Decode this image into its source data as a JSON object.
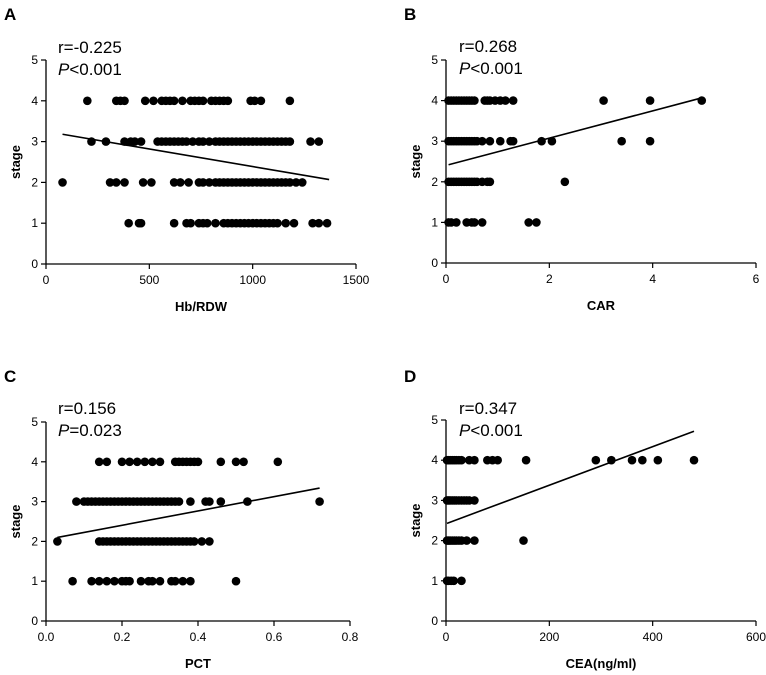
{
  "chart_data": [
    {
      "type": "scatter",
      "panel": "A",
      "stat_r": "r=-0.225",
      "stat_p_symbol": "P",
      "stat_p_value": "<0.001",
      "xlabel": "Hb/RDW",
      "ylabel": "stage",
      "xlim": [
        0,
        1500
      ],
      "ylim": [
        0,
        5
      ],
      "xticks": [
        0,
        500,
        1000,
        1500
      ],
      "xtick_labels": [
        "0",
        "500",
        "1000",
        "1500"
      ],
      "yticks": [
        0,
        1,
        2,
        3,
        4,
        5
      ],
      "ytick_labels": [
        "0",
        "1",
        "2",
        "3",
        "4",
        "5"
      ],
      "fit_line": [
        [
          80,
          3.18
        ],
        [
          1370,
          2.07
        ]
      ],
      "points": [
        [
          200,
          4
        ],
        [
          340,
          4
        ],
        [
          360,
          4
        ],
        [
          380,
          4
        ],
        [
          480,
          4
        ],
        [
          520,
          4
        ],
        [
          560,
          4
        ],
        [
          580,
          4
        ],
        [
          600,
          4
        ],
        [
          620,
          4
        ],
        [
          660,
          4
        ],
        [
          700,
          4
        ],
        [
          720,
          4
        ],
        [
          740,
          4
        ],
        [
          760,
          4
        ],
        [
          800,
          4
        ],
        [
          820,
          4
        ],
        [
          840,
          4
        ],
        [
          860,
          4
        ],
        [
          880,
          4
        ],
        [
          990,
          4
        ],
        [
          1010,
          4
        ],
        [
          1040,
          4
        ],
        [
          1180,
          4
        ],
        [
          220,
          3
        ],
        [
          290,
          3
        ],
        [
          380,
          3
        ],
        [
          410,
          3
        ],
        [
          430,
          3
        ],
        [
          460,
          3
        ],
        [
          540,
          3
        ],
        [
          560,
          3
        ],
        [
          580,
          3
        ],
        [
          600,
          3
        ],
        [
          620,
          3
        ],
        [
          640,
          3
        ],
        [
          660,
          3
        ],
        [
          680,
          3
        ],
        [
          710,
          3
        ],
        [
          740,
          3
        ],
        [
          760,
          3
        ],
        [
          790,
          3
        ],
        [
          820,
          3
        ],
        [
          840,
          3
        ],
        [
          860,
          3
        ],
        [
          880,
          3
        ],
        [
          900,
          3
        ],
        [
          920,
          3
        ],
        [
          940,
          3
        ],
        [
          960,
          3
        ],
        [
          980,
          3
        ],
        [
          1000,
          3
        ],
        [
          1020,
          3
        ],
        [
          1040,
          3
        ],
        [
          1060,
          3
        ],
        [
          1080,
          3
        ],
        [
          1100,
          3
        ],
        [
          1120,
          3
        ],
        [
          1140,
          3
        ],
        [
          1160,
          3
        ],
        [
          1180,
          3
        ],
        [
          1280,
          3
        ],
        [
          1320,
          3
        ],
        [
          80,
          2
        ],
        [
          310,
          2
        ],
        [
          340,
          2
        ],
        [
          380,
          2
        ],
        [
          470,
          2
        ],
        [
          510,
          2
        ],
        [
          620,
          2
        ],
        [
          650,
          2
        ],
        [
          690,
          2
        ],
        [
          740,
          2
        ],
        [
          760,
          2
        ],
        [
          790,
          2
        ],
        [
          820,
          2
        ],
        [
          840,
          2
        ],
        [
          860,
          2
        ],
        [
          880,
          2
        ],
        [
          900,
          2
        ],
        [
          920,
          2
        ],
        [
          940,
          2
        ],
        [
          960,
          2
        ],
        [
          980,
          2
        ],
        [
          1000,
          2
        ],
        [
          1020,
          2
        ],
        [
          1040,
          2
        ],
        [
          1060,
          2
        ],
        [
          1080,
          2
        ],
        [
          1100,
          2
        ],
        [
          1120,
          2
        ],
        [
          1140,
          2
        ],
        [
          1160,
          2
        ],
        [
          1180,
          2
        ],
        [
          1210,
          2
        ],
        [
          1240,
          2
        ],
        [
          400,
          1
        ],
        [
          450,
          1
        ],
        [
          460,
          1
        ],
        [
          620,
          1
        ],
        [
          680,
          1
        ],
        [
          700,
          1
        ],
        [
          740,
          1
        ],
        [
          760,
          1
        ],
        [
          780,
          1
        ],
        [
          820,
          1
        ],
        [
          860,
          1
        ],
        [
          880,
          1
        ],
        [
          900,
          1
        ],
        [
          920,
          1
        ],
        [
          940,
          1
        ],
        [
          960,
          1
        ],
        [
          980,
          1
        ],
        [
          1000,
          1
        ],
        [
          1020,
          1
        ],
        [
          1040,
          1
        ],
        [
          1060,
          1
        ],
        [
          1080,
          1
        ],
        [
          1100,
          1
        ],
        [
          1120,
          1
        ],
        [
          1160,
          1
        ],
        [
          1200,
          1
        ],
        [
          1290,
          1
        ],
        [
          1320,
          1
        ],
        [
          1360,
          1
        ]
      ]
    },
    {
      "type": "scatter",
      "panel": "B",
      "stat_r": "r=0.268",
      "stat_p_symbol": "P",
      "stat_p_value": "<0.001",
      "xlabel": "CAR",
      "ylabel": "stage",
      "xlim": [
        0,
        6
      ],
      "ylim": [
        0,
        5
      ],
      "xticks": [
        0,
        2,
        4,
        6
      ],
      "xtick_labels": [
        "0",
        "2",
        "4",
        "6"
      ],
      "yticks": [
        0,
        1,
        2,
        3,
        4,
        5
      ],
      "ytick_labels": [
        "0",
        "1",
        "2",
        "3",
        "4",
        "5"
      ],
      "fit_line": [
        [
          0.05,
          2.42
        ],
        [
          4.9,
          4.05
        ]
      ],
      "points": [
        [
          0.05,
          4
        ],
        [
          0.1,
          4
        ],
        [
          0.15,
          4
        ],
        [
          0.2,
          4
        ],
        [
          0.25,
          4
        ],
        [
          0.3,
          4
        ],
        [
          0.35,
          4
        ],
        [
          0.4,
          4
        ],
        [
          0.45,
          4
        ],
        [
          0.5,
          4
        ],
        [
          0.55,
          4
        ],
        [
          0.75,
          4
        ],
        [
          0.8,
          4
        ],
        [
          0.85,
          4
        ],
        [
          0.95,
          4
        ],
        [
          1.05,
          4
        ],
        [
          1.15,
          4
        ],
        [
          1.3,
          4
        ],
        [
          3.05,
          4
        ],
        [
          3.95,
          4
        ],
        [
          4.95,
          4
        ],
        [
          0.05,
          3
        ],
        [
          0.1,
          3
        ],
        [
          0.15,
          3
        ],
        [
          0.2,
          3
        ],
        [
          0.25,
          3
        ],
        [
          0.3,
          3
        ],
        [
          0.35,
          3
        ],
        [
          0.4,
          3
        ],
        [
          0.45,
          3
        ],
        [
          0.5,
          3
        ],
        [
          0.55,
          3
        ],
        [
          0.6,
          3
        ],
        [
          0.7,
          3
        ],
        [
          0.85,
          3
        ],
        [
          1.05,
          3
        ],
        [
          1.25,
          3
        ],
        [
          1.3,
          3
        ],
        [
          1.85,
          3
        ],
        [
          2.05,
          3
        ],
        [
          3.4,
          3
        ],
        [
          3.95,
          3
        ],
        [
          0.05,
          2
        ],
        [
          0.1,
          2
        ],
        [
          0.15,
          2
        ],
        [
          0.2,
          2
        ],
        [
          0.25,
          2
        ],
        [
          0.3,
          2
        ],
        [
          0.35,
          2
        ],
        [
          0.4,
          2
        ],
        [
          0.45,
          2
        ],
        [
          0.5,
          2
        ],
        [
          0.55,
          2
        ],
        [
          0.6,
          2
        ],
        [
          0.7,
          2
        ],
        [
          0.8,
          2
        ],
        [
          0.85,
          2
        ],
        [
          2.3,
          2
        ],
        [
          0.05,
          1
        ],
        [
          0.1,
          1
        ],
        [
          0.2,
          1
        ],
        [
          0.4,
          1
        ],
        [
          0.5,
          1
        ],
        [
          0.55,
          1
        ],
        [
          0.7,
          1
        ],
        [
          1.6,
          1
        ],
        [
          1.75,
          1
        ]
      ]
    },
    {
      "type": "scatter",
      "panel": "C",
      "stat_r": "r=0.156",
      "stat_p_symbol": "P",
      "stat_p_value": "=0.023",
      "xlabel": "PCT",
      "ylabel": "stage",
      "xlim": [
        0.0,
        0.8
      ],
      "ylim": [
        0,
        5
      ],
      "xticks": [
        0.0,
        0.2,
        0.4,
        0.6,
        0.8
      ],
      "xtick_labels": [
        "0.0",
        "0.2",
        "0.4",
        "0.6",
        "0.8"
      ],
      "yticks": [
        0,
        1,
        2,
        3,
        4,
        5
      ],
      "ytick_labels": [
        "0",
        "1",
        "2",
        "3",
        "4",
        "5"
      ],
      "fit_line": [
        [
          0.03,
          2.1
        ],
        [
          0.72,
          3.34
        ]
      ],
      "points": [
        [
          0.14,
          4
        ],
        [
          0.16,
          4
        ],
        [
          0.2,
          4
        ],
        [
          0.22,
          4
        ],
        [
          0.24,
          4
        ],
        [
          0.26,
          4
        ],
        [
          0.28,
          4
        ],
        [
          0.3,
          4
        ],
        [
          0.34,
          4
        ],
        [
          0.35,
          4
        ],
        [
          0.36,
          4
        ],
        [
          0.37,
          4
        ],
        [
          0.38,
          4
        ],
        [
          0.39,
          4
        ],
        [
          0.4,
          4
        ],
        [
          0.46,
          4
        ],
        [
          0.5,
          4
        ],
        [
          0.52,
          4
        ],
        [
          0.61,
          4
        ],
        [
          0.08,
          3
        ],
        [
          0.1,
          3
        ],
        [
          0.11,
          3
        ],
        [
          0.12,
          3
        ],
        [
          0.13,
          3
        ],
        [
          0.14,
          3
        ],
        [
          0.15,
          3
        ],
        [
          0.16,
          3
        ],
        [
          0.17,
          3
        ],
        [
          0.18,
          3
        ],
        [
          0.19,
          3
        ],
        [
          0.2,
          3
        ],
        [
          0.21,
          3
        ],
        [
          0.22,
          3
        ],
        [
          0.23,
          3
        ],
        [
          0.24,
          3
        ],
        [
          0.25,
          3
        ],
        [
          0.26,
          3
        ],
        [
          0.27,
          3
        ],
        [
          0.28,
          3
        ],
        [
          0.29,
          3
        ],
        [
          0.3,
          3
        ],
        [
          0.31,
          3
        ],
        [
          0.32,
          3
        ],
        [
          0.33,
          3
        ],
        [
          0.34,
          3
        ],
        [
          0.35,
          3
        ],
        [
          0.38,
          3
        ],
        [
          0.42,
          3
        ],
        [
          0.43,
          3
        ],
        [
          0.46,
          3
        ],
        [
          0.53,
          3
        ],
        [
          0.72,
          3
        ],
        [
          0.03,
          2
        ],
        [
          0.14,
          2
        ],
        [
          0.15,
          2
        ],
        [
          0.16,
          2
        ],
        [
          0.17,
          2
        ],
        [
          0.18,
          2
        ],
        [
          0.19,
          2
        ],
        [
          0.2,
          2
        ],
        [
          0.21,
          2
        ],
        [
          0.22,
          2
        ],
        [
          0.23,
          2
        ],
        [
          0.24,
          2
        ],
        [
          0.25,
          2
        ],
        [
          0.26,
          2
        ],
        [
          0.27,
          2
        ],
        [
          0.28,
          2
        ],
        [
          0.29,
          2
        ],
        [
          0.3,
          2
        ],
        [
          0.31,
          2
        ],
        [
          0.32,
          2
        ],
        [
          0.33,
          2
        ],
        [
          0.34,
          2
        ],
        [
          0.35,
          2
        ],
        [
          0.36,
          2
        ],
        [
          0.37,
          2
        ],
        [
          0.38,
          2
        ],
        [
          0.39,
          2
        ],
        [
          0.41,
          2
        ],
        [
          0.43,
          2
        ],
        [
          0.07,
          1
        ],
        [
          0.12,
          1
        ],
        [
          0.14,
          1
        ],
        [
          0.16,
          1
        ],
        [
          0.18,
          1
        ],
        [
          0.2,
          1
        ],
        [
          0.21,
          1
        ],
        [
          0.22,
          1
        ],
        [
          0.25,
          1
        ],
        [
          0.27,
          1
        ],
        [
          0.28,
          1
        ],
        [
          0.3,
          1
        ],
        [
          0.33,
          1
        ],
        [
          0.34,
          1
        ],
        [
          0.36,
          1
        ],
        [
          0.38,
          1
        ],
        [
          0.5,
          1
        ]
      ]
    },
    {
      "type": "scatter",
      "panel": "D",
      "stat_r": "r=0.347",
      "stat_p_symbol": "P",
      "stat_p_value": "<0.001",
      "xlabel": "CEA(ng/ml)",
      "ylabel": "stage",
      "xlim": [
        0,
        600
      ],
      "ylim": [
        0,
        5
      ],
      "xticks": [
        0,
        200,
        400,
        600
      ],
      "xtick_labels": [
        "0",
        "200",
        "400",
        "600"
      ],
      "yticks": [
        0,
        1,
        2,
        3,
        4,
        5
      ],
      "ytick_labels": [
        "0",
        "1",
        "2",
        "3",
        "4",
        "5"
      ],
      "fit_line": [
        [
          2,
          2.43
        ],
        [
          480,
          4.72
        ]
      ],
      "points": [
        [
          2,
          4
        ],
        [
          5,
          4
        ],
        [
          8,
          4
        ],
        [
          12,
          4
        ],
        [
          16,
          4
        ],
        [
          20,
          4
        ],
        [
          25,
          4
        ],
        [
          30,
          4
        ],
        [
          45,
          4
        ],
        [
          55,
          4
        ],
        [
          80,
          4
        ],
        [
          90,
          4
        ],
        [
          100,
          4
        ],
        [
          155,
          4
        ],
        [
          290,
          4
        ],
        [
          320,
          4
        ],
        [
          360,
          4
        ],
        [
          380,
          4
        ],
        [
          410,
          4
        ],
        [
          480,
          4
        ],
        [
          2,
          3
        ],
        [
          5,
          3
        ],
        [
          8,
          3
        ],
        [
          12,
          3
        ],
        [
          16,
          3
        ],
        [
          20,
          3
        ],
        [
          25,
          3
        ],
        [
          30,
          3
        ],
        [
          35,
          3
        ],
        [
          40,
          3
        ],
        [
          45,
          3
        ],
        [
          55,
          3
        ],
        [
          2,
          2
        ],
        [
          5,
          2
        ],
        [
          8,
          2
        ],
        [
          12,
          2
        ],
        [
          16,
          2
        ],
        [
          20,
          2
        ],
        [
          25,
          2
        ],
        [
          30,
          2
        ],
        [
          40,
          2
        ],
        [
          55,
          2
        ],
        [
          150,
          2
        ],
        [
          2,
          1
        ],
        [
          5,
          1
        ],
        [
          10,
          1
        ],
        [
          15,
          1
        ],
        [
          30,
          1
        ]
      ]
    }
  ]
}
